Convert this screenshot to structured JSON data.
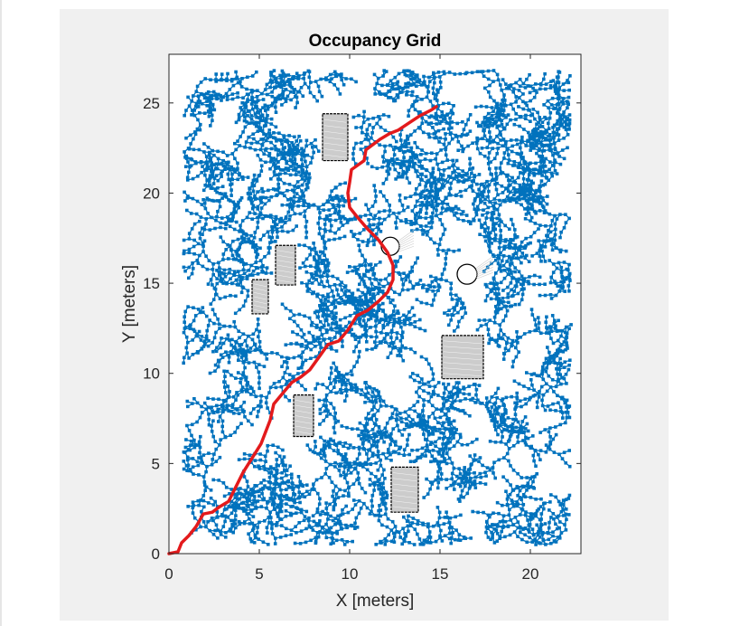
{
  "chart_data": {
    "type": "scatter",
    "title": "Occupancy Grid",
    "xlabel": "X [meters]",
    "ylabel": "Y [meters]",
    "xlim": [
      0,
      22.8
    ],
    "ylim": [
      0,
      27.7
    ],
    "xticks": [
      {
        "value": 0,
        "label": "0"
      },
      {
        "value": 5,
        "label": "5"
      },
      {
        "value": 10,
        "label": "10"
      },
      {
        "value": 15,
        "label": "15"
      },
      {
        "value": 20,
        "label": "20"
      }
    ],
    "yticks": [
      {
        "value": 0,
        "label": "0"
      },
      {
        "value": 5,
        "label": "5"
      },
      {
        "value": 10,
        "label": "10"
      },
      {
        "value": 15,
        "label": "15"
      },
      {
        "value": 20,
        "label": "20"
      },
      {
        "value": 25,
        "label": "25"
      }
    ],
    "grid": false,
    "colors": {
      "tree": "#0072bd",
      "path": "#e31a1c",
      "obstacle_fill": "#cccccc",
      "obstacle_edge": "#000000",
      "axes_bg": "#ffffff",
      "figure_bg": "#f0f0f0"
    },
    "obstacles": [
      {
        "shape": "rect",
        "x": [
          8.5,
          9.9
        ],
        "y": [
          21.8,
          24.4
        ]
      },
      {
        "shape": "rect",
        "x": [
          5.9,
          7.0
        ],
        "y": [
          14.9,
          17.1
        ]
      },
      {
        "shape": "rect",
        "x": [
          4.6,
          5.5
        ],
        "y": [
          13.3,
          15.2
        ]
      },
      {
        "shape": "rect",
        "x": [
          6.9,
          8.0
        ],
        "y": [
          6.5,
          8.8
        ]
      },
      {
        "shape": "rect",
        "x": [
          15.1,
          17.4
        ],
        "y": [
          9.7,
          12.1
        ]
      },
      {
        "shape": "rect",
        "x": [
          12.3,
          13.8
        ],
        "y": [
          2.3,
          4.8
        ]
      },
      {
        "shape": "circle",
        "cx": 12.25,
        "cy": 17.05,
        "r": 0.5
      },
      {
        "shape": "circle",
        "cx": 16.5,
        "cy": 15.5,
        "r": 0.55
      }
    ],
    "series": [
      {
        "type": "line",
        "points": [
          [
            0,
            0
          ],
          [
            0.5,
            0.1
          ],
          [
            0.7,
            0.6
          ],
          [
            1.1,
            1.0
          ],
          [
            1.5,
            1.5
          ],
          [
            1.9,
            2.2
          ],
          [
            2.4,
            2.3
          ],
          [
            2.8,
            2.6
          ],
          [
            3.3,
            2.9
          ],
          [
            3.7,
            3.7
          ],
          [
            4.1,
            4.5
          ],
          [
            4.6,
            5.3
          ],
          [
            5.1,
            6.1
          ],
          [
            5.6,
            7.4
          ],
          [
            5.8,
            8.3
          ],
          [
            6.3,
            8.9
          ],
          [
            6.8,
            9.5
          ],
          [
            7.3,
            9.8
          ],
          [
            7.8,
            10.2
          ],
          [
            8.3,
            10.9
          ],
          [
            8.8,
            11.6
          ],
          [
            9.4,
            11.8
          ],
          [
            9.9,
            12.4
          ],
          [
            10.4,
            13.2
          ],
          [
            11.0,
            13.5
          ],
          [
            11.6,
            14.0
          ],
          [
            12.1,
            14.5
          ],
          [
            12.4,
            15.2
          ],
          [
            12.4,
            16.0
          ],
          [
            12.1,
            16.7
          ],
          [
            11.6,
            17.4
          ],
          [
            11.0,
            18.0
          ],
          [
            10.4,
            18.7
          ],
          [
            10.0,
            19.2
          ],
          [
            9.9,
            20.0
          ],
          [
            10.0,
            20.6
          ],
          [
            10.1,
            21.3
          ],
          [
            10.8,
            21.8
          ],
          [
            10.9,
            22.4
          ],
          [
            11.7,
            23.0
          ],
          [
            12.2,
            23.3
          ],
          [
            12.7,
            23.5
          ],
          [
            13.3,
            23.9
          ],
          [
            13.9,
            24.3
          ],
          [
            14.5,
            24.6
          ],
          [
            14.8,
            24.8
          ]
        ]
      }
    ]
  }
}
